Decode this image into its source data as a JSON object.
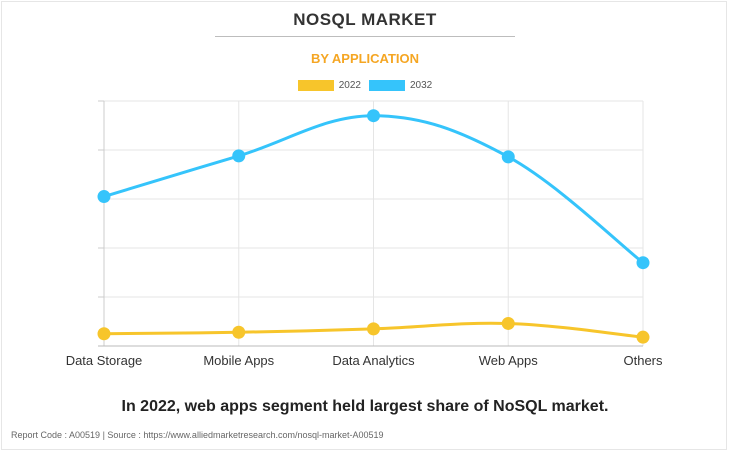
{
  "header": {
    "title": "NOSQL MARKET",
    "subtitle": "BY APPLICATION"
  },
  "colors": {
    "title": "#333333",
    "subtitle": "#f5a623",
    "series_2022": "#f7c52b",
    "series_2032": "#35c4fb",
    "grid": "#e5e5e5"
  },
  "chart_data": {
    "type": "line",
    "categories": [
      "Data Storage",
      "Mobile Apps",
      "Data Analytics",
      "Web Apps",
      "Others"
    ],
    "series": [
      {
        "name": "2022",
        "color": "#f7c52b",
        "values": [
          2.5,
          2.8,
          3.5,
          4.6,
          1.8
        ]
      },
      {
        "name": "2032",
        "color": "#35c4fb",
        "values": [
          30.5,
          38.8,
          47.0,
          38.6,
          17.0
        ]
      }
    ],
    "ylim": [
      0,
      50
    ],
    "y_ticks_labeled": false,
    "grid": true,
    "legend_position": "top-center",
    "smooth": true
  },
  "caption": "In 2022, web apps segment held largest share of NoSQL market.",
  "footer": "Report Code : A00519  |  Source : https://www.alliedmarketresearch.com/nosql-market-A00519"
}
